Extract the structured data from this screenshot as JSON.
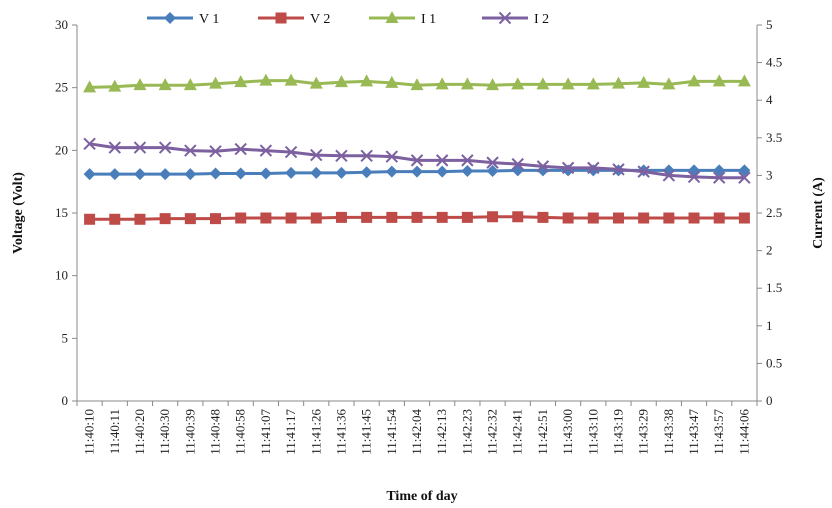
{
  "chart_data": {
    "type": "line",
    "xlabel": "Time of day",
    "ylabel_left": "Voltage (Volt)",
    "ylabel_right": "Current (A)",
    "ylim_left": [
      0,
      30
    ],
    "yticks_left": [
      "0",
      "5",
      "10",
      "15",
      "20",
      "25",
      "30"
    ],
    "ylim_right": [
      0,
      5
    ],
    "yticks_right": [
      "0",
      "0.5",
      "1",
      "1.5",
      "2",
      "2.5",
      "3",
      "3.5",
      "4",
      "4.5",
      "5"
    ],
    "grid": false,
    "legend_position": "top",
    "x_ticks": [
      "11:40:10",
      "11:40:11",
      "11:40:20",
      "11:40:30",
      "11:40:39",
      "11:40:48",
      "11:40:58",
      "11:41:07",
      "11:41:17",
      "11:41:26",
      "11:41:36",
      "11:41:45",
      "11:41:54",
      "11:42:04",
      "11:42:13",
      "11:42:23",
      "11:42:32",
      "11:42:41",
      "11:42:51",
      "11:43:00",
      "11:43:10",
      "11:43:19",
      "11:43:29",
      "11:43:38",
      "11:43:47",
      "11:43:57",
      "11:44:06"
    ],
    "series": [
      {
        "name": "V 1",
        "axis": "left",
        "color": "#4a7ebb",
        "marker": "diamond",
        "values": [
          18.1,
          18.1,
          18.1,
          18.1,
          18.1,
          18.15,
          18.15,
          18.15,
          18.2,
          18.2,
          18.2,
          18.25,
          18.3,
          18.3,
          18.3,
          18.35,
          18.35,
          18.4,
          18.4,
          18.4,
          18.4,
          18.4,
          18.4,
          18.4,
          18.4,
          18.4,
          18.4
        ]
      },
      {
        "name": "V 2",
        "axis": "left",
        "color": "#be4b48",
        "marker": "square",
        "values": [
          14.5,
          14.5,
          14.5,
          14.55,
          14.55,
          14.55,
          14.6,
          14.6,
          14.6,
          14.6,
          14.65,
          14.65,
          14.65,
          14.65,
          14.65,
          14.65,
          14.7,
          14.7,
          14.65,
          14.6,
          14.6,
          14.6,
          14.6,
          14.6,
          14.6,
          14.6,
          14.6
        ]
      },
      {
        "name": "I 1",
        "axis": "right",
        "color": "#98b954",
        "marker": "triangle",
        "values": [
          4.17,
          4.18,
          4.2,
          4.2,
          4.2,
          4.22,
          4.24,
          4.26,
          4.26,
          4.22,
          4.24,
          4.25,
          4.23,
          4.2,
          4.21,
          4.21,
          4.2,
          4.21,
          4.21,
          4.21,
          4.21,
          4.22,
          4.23,
          4.21,
          4.25,
          4.25,
          4.25
        ]
      },
      {
        "name": "I 2",
        "axis": "right",
        "color": "#7d60a0",
        "marker": "x",
        "values": [
          3.42,
          3.37,
          3.37,
          3.37,
          3.33,
          3.32,
          3.35,
          3.33,
          3.31,
          3.27,
          3.26,
          3.26,
          3.25,
          3.2,
          3.2,
          3.2,
          3.17,
          3.15,
          3.12,
          3.1,
          3.1,
          3.08,
          3.05,
          3.0,
          2.98,
          2.97,
          2.97
        ]
      }
    ]
  }
}
